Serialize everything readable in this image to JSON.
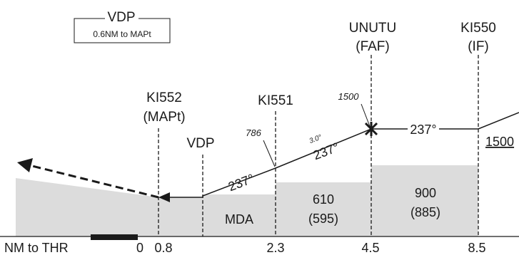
{
  "legend": {
    "title": "VDP",
    "subtitle": "0.6NM to MAPt"
  },
  "fixes": [
    {
      "name": "UNUTU",
      "role": "(FAF)"
    },
    {
      "name": "KI550",
      "role": "(IF)"
    },
    {
      "name": "KI552",
      "role": "(MAPt)"
    },
    {
      "name": "KI551"
    }
  ],
  "vdp_label": "VDP",
  "altitudes": {
    "faf": "1500",
    "ki551": "786",
    "if_level": "1500"
  },
  "glidepath_angle": "3.0°",
  "courses": {
    "segment_low": "237°",
    "segment_mid": "237°",
    "segment_if": "237°"
  },
  "minimums": [
    {
      "alt": "610",
      "hat": "(595)"
    },
    {
      "alt": "900",
      "hat": "(885)"
    }
  ],
  "mda_label": "MDA",
  "distance_axis": {
    "label": "NM to THR",
    "ticks": [
      "0",
      "0.8",
      "2.3",
      "4.5",
      "8.5"
    ]
  },
  "colors": {
    "terrain": "#dcdcdc",
    "ink": "#1a1a1a",
    "background": "#ffffff"
  }
}
